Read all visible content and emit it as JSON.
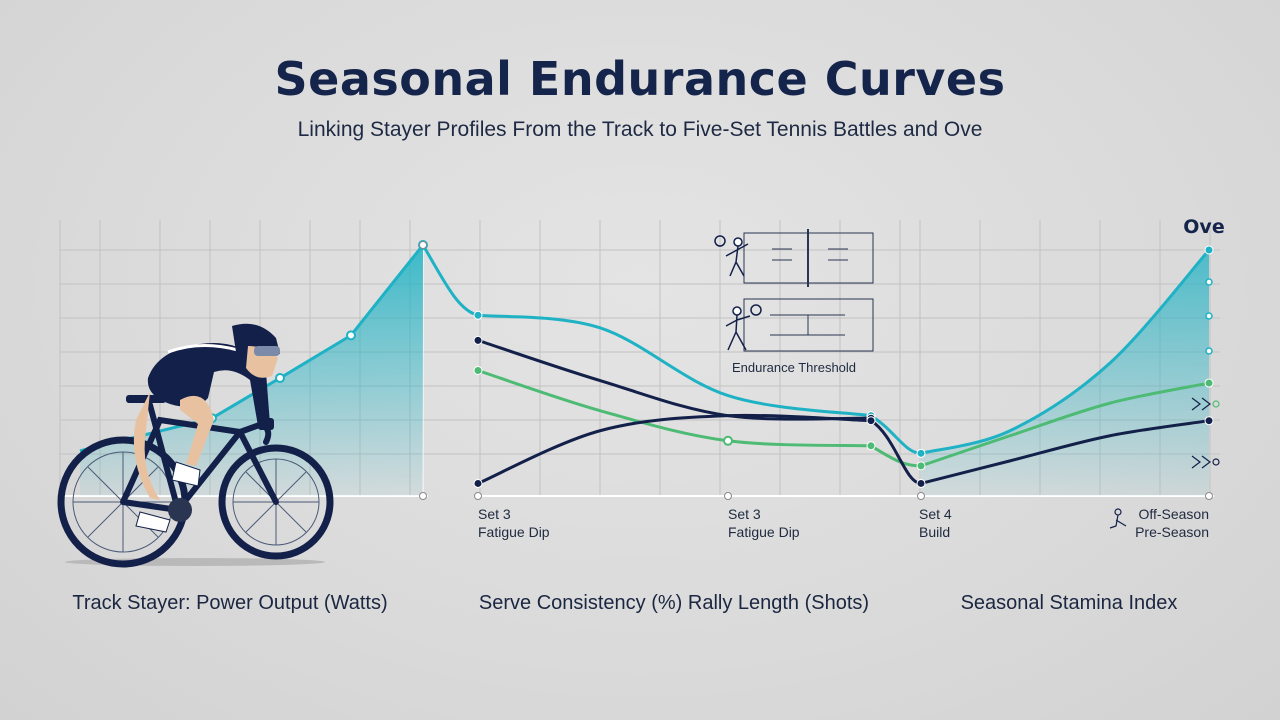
{
  "title": "Seasonal Endurance Curves",
  "subtitle": "Linking Stayer Profiles From the Track to Five-Set Tennis Battles and Ove",
  "colors": {
    "teal": "#1fb2c4",
    "navy": "#13214a",
    "green": "#4dbb74",
    "grid": "#c2c2c2",
    "text": "#14244a"
  },
  "icons": [
    "cyclist-icon",
    "tennis-player-icon",
    "tennis-court-icon",
    "connector-icon"
  ],
  "chart_data": [
    {
      "type": "area",
      "xlabel": "Track Stayer: Power Output (Watts)",
      "series": [
        {
          "values": [
            0.18,
            0.31,
            0.47,
            0.64,
            1.0
          ]
        }
      ]
    },
    {
      "type": "line",
      "xlabel": "Serve Consistency (%) Rally Length (Shots)",
      "tick_labels": [
        {
          "line1": "Set 3",
          "line2": "Fatigue Dip"
        },
        {
          "line1": "Set 3",
          "line2": "Fatigue Dip"
        }
      ],
      "annotation": "Endurance Threshold",
      "series": [
        {
          "color": "teal",
          "values": [
            0.72,
            0.67,
            0.4,
            0.32
          ]
        },
        {
          "color": "navy",
          "values": [
            0.62,
            0.46,
            0.32,
            0.31
          ]
        },
        {
          "color": "green",
          "values": [
            0.5,
            0.34,
            0.22,
            0.2
          ]
        },
        {
          "color": "navy",
          "values": [
            0.05,
            0.26,
            0.32,
            0.3
          ]
        }
      ]
    },
    {
      "type": "area",
      "xlabel": "Seasonal Stamina Index",
      "corner_label": "Ove",
      "tick_labels": [
        {
          "line1": "Set 4",
          "line2": "Build"
        },
        {
          "line1": "Off-Season",
          "line2": "Pre-Season"
        }
      ],
      "series": [
        {
          "color": "teal",
          "values": [
            0.17,
            0.26,
            0.53,
            0.98
          ]
        },
        {
          "color": "green",
          "values": [
            0.12,
            0.24,
            0.37,
            0.45
          ]
        },
        {
          "color": "navy",
          "values": [
            0.05,
            0.14,
            0.24,
            0.3
          ]
        }
      ]
    }
  ]
}
